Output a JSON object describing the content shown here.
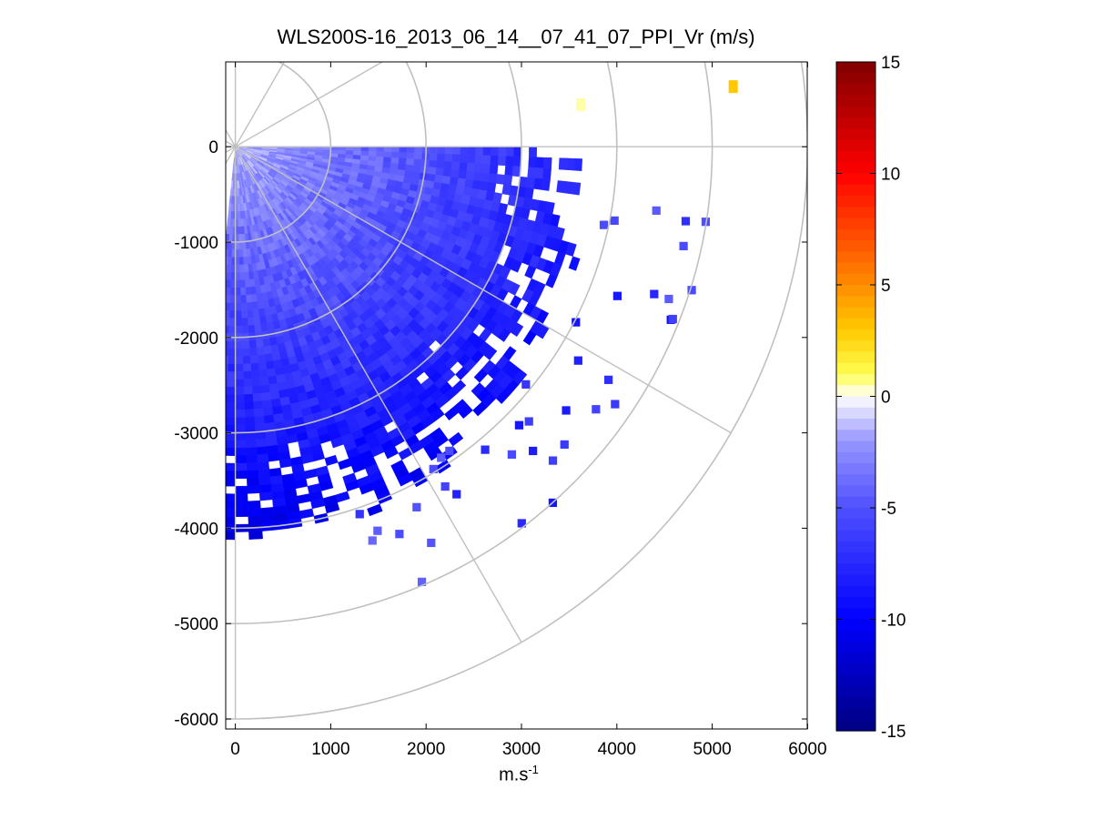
{
  "chart_data": {
    "type": "heatmap",
    "subtype": "polar PPI scan (sector display)",
    "title": "WLS200S-16_2013_06_14__07_41_07_PPI_Vr (m/s)",
    "xlabel": "m.s",
    "xlabel_sup": "-1",
    "ylabel": "",
    "xlim": [
      -100,
      6000
    ],
    "ylim": [
      -6100,
      900
    ],
    "xticks": [
      0,
      1000,
      2000,
      3000,
      4000,
      5000,
      6000
    ],
    "yticks": [
      0,
      -1000,
      -2000,
      -3000,
      -4000,
      -5000,
      -6000
    ],
    "xtick_labels": [
      "0",
      "1000",
      "2000",
      "3000",
      "4000",
      "5000",
      "6000"
    ],
    "ytick_labels": [
      "0",
      "-1000",
      "-2000",
      "-3000",
      "-4000",
      "-5000",
      "-6000"
    ],
    "polar_grid": {
      "range_rings": [
        1000,
        2000,
        3000,
        4000,
        5000,
        6000
      ],
      "spokes_deg": [
        0,
        30,
        60,
        90,
        120,
        150,
        180,
        210,
        240,
        270,
        300,
        330
      ]
    },
    "colorbar": {
      "min": -15,
      "max": 15,
      "tick_values": [
        15,
        10,
        5,
        0,
        -5,
        -10,
        -15
      ],
      "tick_labels": [
        "15",
        "10",
        "5",
        "0",
        "-5",
        "-10",
        "-15"
      ]
    },
    "data_region": {
      "azimuth_start_deg": 90,
      "azimuth_end_deg": 186,
      "max_range_m": 4100,
      "typical_values_ms": {
        "near_range": -2,
        "mid_range": -5,
        "far_range": -9
      }
    },
    "isolated_points": [
      {
        "x": 5220,
        "y": 630,
        "value": 3
      },
      {
        "x": 3620,
        "y": 440,
        "value": 0.5
      }
    ]
  }
}
